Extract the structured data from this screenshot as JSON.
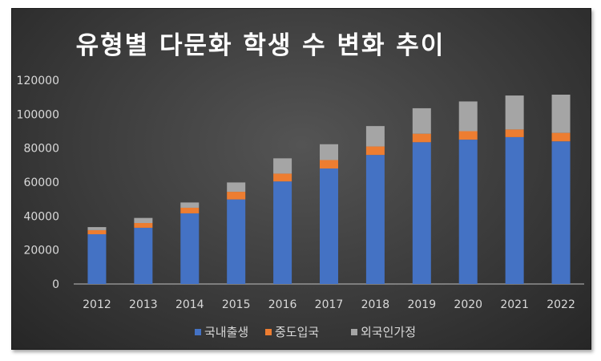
{
  "chart_data": {
    "type": "bar",
    "stacked": true,
    "title": "유형별 다문화 학생 수 변화 추이",
    "categories": [
      "2012",
      "2013",
      "2014",
      "2015",
      "2016",
      "2017",
      "2018",
      "2019",
      "2020",
      "2021",
      "2022"
    ],
    "series": [
      {
        "name": "국내출생",
        "color": "#4472c4",
        "values": [
          29300,
          33100,
          41600,
          49800,
          60400,
          68000,
          76000,
          83500,
          85000,
          86500,
          84000
        ]
      },
      {
        "name": "중도입국",
        "color": "#ed7d31",
        "values": [
          2400,
          2800,
          3300,
          4500,
          4600,
          5000,
          5000,
          5000,
          5000,
          4500,
          5000
        ]
      },
      {
        "name": "외국인가정",
        "color": "#a5a5a5",
        "values": [
          1800,
          3000,
          3100,
          5500,
          9000,
          9300,
          12000,
          15000,
          17500,
          20000,
          22500
        ]
      }
    ],
    "ylim": [
      0,
      120000
    ],
    "yticks": [
      0,
      20000,
      40000,
      60000,
      80000,
      100000,
      120000
    ],
    "grid": false,
    "legend": "bottom"
  }
}
